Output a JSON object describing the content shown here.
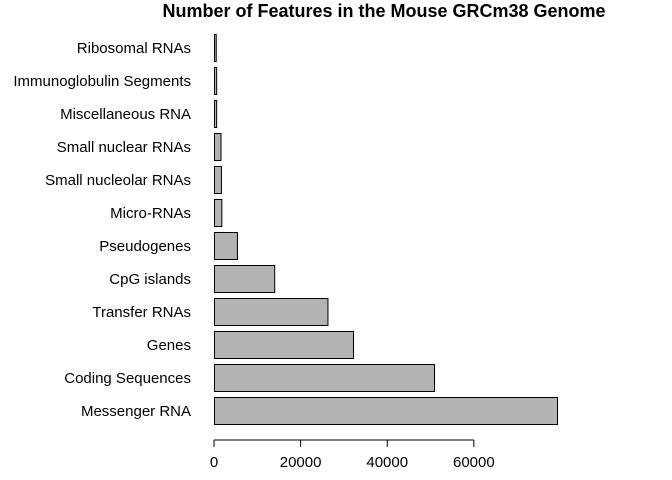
{
  "chart_data": {
    "type": "bar",
    "orientation": "horizontal",
    "title": "Number of Features in the Mouse GRCm38 Genome",
    "xlabel": "",
    "ylabel": "",
    "categories": [
      "Messenger RNA",
      "Coding Sequences",
      "Genes",
      "Transfer RNAs",
      "CpG islands",
      "Pseudogenes",
      "Micro-RNAs",
      "Small nucleolar RNAs",
      "Small nuclear RNAs",
      "Miscellaneous RNA",
      "Immunoglobulin Segments",
      "Ribosomal RNAs"
    ],
    "values": [
      79200,
      50800,
      32100,
      26200,
      13900,
      5300,
      1700,
      1600,
      1500,
      500,
      500,
      400
    ],
    "xticks": [
      0,
      20000,
      40000,
      60000
    ],
    "xlim": [
      0,
      79200
    ],
    "grid": false,
    "legend": "none",
    "colors": {
      "bar_fill": "#b3b3b3",
      "bar_stroke": "#000000",
      "text": "#000000",
      "background": "#ffffff"
    }
  }
}
